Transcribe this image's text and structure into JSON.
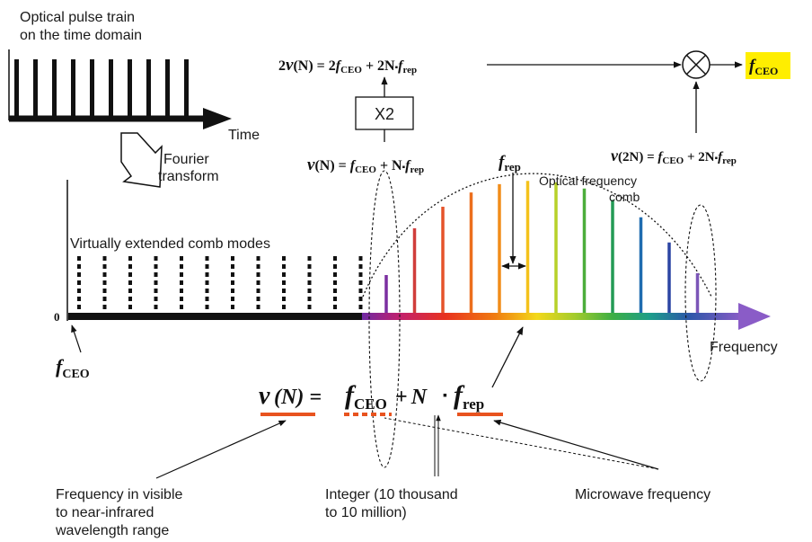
{
  "time_domain": {
    "caption_line1": "Optical pulse train",
    "caption_line2": "on the time domain",
    "axis_label": "Time"
  },
  "fourier": {
    "line1": "Fourier",
    "line2": "transform"
  },
  "frequency_domain": {
    "extended_modes_label": "Virtually extended comb modes",
    "zero_label": "0",
    "axis_label": "Frequency",
    "comb_label_line1": "Optical frequency",
    "comb_label_line2": "comb",
    "frep_label": "f",
    "frep_sub": "rep",
    "fceo_label": "f",
    "fceo_sub": "CEO"
  },
  "interferometer": {
    "eq_nu_n": {
      "nu": "ν",
      "n_part": "(N) = ",
      "f1": "f",
      "sub1": "CEO",
      "mid": " + N",
      "dot": "▪",
      "f2": "f",
      "sub2": "rep"
    },
    "eq_2nu_n": {
      "pre": "2",
      "nu": "ν",
      "n_part": "(N) = 2",
      "f1": "f",
      "sub1": "CEO",
      "mid": " + 2N",
      "dot": "▪",
      "f2": "f",
      "sub2": "rep"
    },
    "eq_nu_2n": {
      "nu": "ν",
      "n_part": "(2N) = ",
      "f1": "f",
      "sub1": "CEO",
      "mid": " + 2N",
      "dot": "▪",
      "f2": "f",
      "sub2": "rep"
    },
    "doubler_label": "X2",
    "output_label": "f",
    "output_sub": "CEO",
    "highlight_color": "#ffee00"
  },
  "main_equation": {
    "nu": "ν",
    "n_part": "(N) =",
    "f1": "f",
    "sub1": "CEO",
    "mid": " + N",
    "dot": "▪",
    "f2": "f",
    "sub2": "rep"
  },
  "annotations": {
    "visible_line1": "Frequency in visible",
    "visible_line2": "to near-infrared",
    "visible_line3": "wavelength range",
    "integer_line1": "Integer (10 thousand",
    "integer_line2": "to 10 million)",
    "microwave": "Microwave frequency"
  },
  "colors": {
    "underline": "#e8531f",
    "arrow_end": "#8a5cc7"
  }
}
